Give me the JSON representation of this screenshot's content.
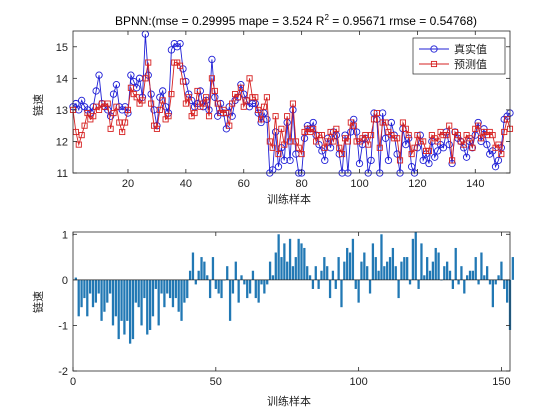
{
  "chart_data": [
    {
      "type": "line",
      "title": "BPNN:(mse = 0.29995 mape = 3.524  R",
      "title_sup": "2",
      "title_tail": " = 0.95671 rmse = 0.54768)",
      "xlabel": "训练样本",
      "ylabel": "链速",
      "xlim": [
        1,
        152
      ],
      "ylim": [
        11,
        15.5
      ],
      "xticks": [
        20,
        40,
        60,
        80,
        100,
        120,
        140
      ],
      "yticks": [
        11,
        12,
        13,
        14,
        15
      ],
      "grid": false,
      "legend_position": "top-right",
      "series": [
        {
          "name": "真实值",
          "color": "#1f1fd6",
          "marker": "circle",
          "values": [
            13.1,
            13.2,
            13.0,
            13.3,
            13.1,
            13.0,
            12.9,
            13.1,
            13.6,
            14.1,
            13.2,
            13.1,
            13.0,
            12.8,
            13.5,
            13.8,
            13.1,
            13.0,
            13.1,
            12.9,
            14.1,
            13.9,
            13.7,
            14.0,
            13.4,
            15.4,
            14.1,
            13.5,
            13.0,
            12.5,
            13.4,
            13.6,
            13.1,
            12.9,
            14.9,
            15.1,
            15.0,
            15.1,
            14.3,
            13.9,
            13.5,
            13.3,
            13.1,
            13.2,
            13.6,
            13.1,
            13.3,
            13.0,
            14.6,
            13.4,
            12.8,
            13.2,
            12.9,
            12.4,
            13.1,
            12.8,
            13.3,
            13.4,
            13.8,
            13.5,
            13.3,
            13.1,
            13.2,
            13.2,
            12.9,
            12.6,
            12.9,
            12.7,
            11.0,
            11.1,
            12.3,
            11.2,
            11.8,
            11.4,
            12.6,
            11.4,
            13.0,
            11.6,
            11.0,
            11.0,
            12.1,
            12.5,
            12.4,
            12.6,
            12.2,
            11.9,
            11.7,
            11.4,
            12.1,
            11.8,
            12.3,
            12.2,
            11.6,
            11.0,
            12.2,
            11.0,
            12.3,
            12.7,
            12.3,
            11.3,
            11.9,
            12.1,
            11.0,
            11.4,
            12.9,
            12.7,
            11.0,
            12.9,
            12.1,
            11.4,
            12.6,
            12.2,
            11.6,
            11.0,
            12.4,
            11.9,
            12.1,
            11.2,
            11.0,
            11.8,
            12.2,
            11.4,
            11.6,
            11.3,
            12.0,
            11.5,
            11.7,
            11.9,
            11.8,
            12.3,
            11.9,
            11.3,
            12.3,
            12.1,
            12.0,
            11.8,
            11.5,
            12.0,
            11.8,
            12.2,
            12.6,
            12.0,
            12.4,
            11.9,
            11.6,
            11.7,
            11.2,
            11.4,
            11.8,
            12.7,
            12.8,
            12.9
          ]
        },
        {
          "name": "预测值",
          "color": "#d62020",
          "marker": "square",
          "values": [
            13.0,
            12.3,
            11.9,
            12.2,
            12.5,
            12.9,
            12.7,
            12.8,
            13.1,
            13.0,
            13.2,
            13.1,
            13.2,
            12.4,
            12.9,
            13.1,
            12.6,
            12.3,
            12.6,
            13.0,
            13.7,
            13.5,
            13.4,
            13.2,
            13.3,
            14.0,
            14.5,
            13.2,
            12.5,
            12.4,
            13.0,
            13.3,
            12.7,
            12.8,
            13.5,
            14.5,
            14.5,
            14.4,
            13.9,
            13.2,
            13.4,
            12.8,
            12.9,
            13.6,
            13.1,
            13.2,
            13.4,
            12.8,
            14.0,
            13.6,
            13.2,
            12.9,
            13.0,
            12.9,
            12.5,
            13.2,
            13.5,
            13.4,
            13.7,
            13.1,
            13.3,
            14.0,
            13.4,
            13.4,
            13.0,
            12.7,
            13.1,
            13.4,
            12.0,
            11.8,
            12.8,
            11.6,
            12.4,
            11.9,
            12.8,
            12.0,
            13.2,
            12.0,
            11.8,
            11.6,
            12.3,
            12.4,
            12.3,
            12.4,
            12.0,
            12.2,
            12.2,
            11.8,
            12.0,
            12.3,
            12.0,
            12.4,
            11.8,
            11.6,
            12.1,
            12.0,
            12.6,
            12.5,
            12.0,
            12.0,
            12.1,
            12.2,
            11.9,
            12.2,
            12.7,
            12.9,
            11.8,
            12.6,
            12.6,
            12.3,
            12.2,
            12.1,
            12.1,
            11.4,
            12.6,
            12.4,
            12.2,
            11.6,
            11.8,
            12.2,
            12.0,
            12.0,
            11.7,
            11.7,
            12.2,
            12.1,
            12.0,
            12.3,
            12.2,
            12.2,
            12.5,
            11.4,
            12.3,
            12.2,
            12.0,
            11.9,
            12.2,
            12.1,
            11.8,
            12.4,
            12.5,
            12.1,
            12.3,
            12.2,
            12.3,
            12.2,
            11.8,
            11.9,
            11.6,
            12.3,
            12.7,
            12.4
          ]
        }
      ]
    },
    {
      "type": "bar",
      "title": "",
      "xlabel": "训练样本",
      "ylabel": "链速",
      "xlim": [
        0,
        153
      ],
      "ylim": [
        -2,
        1.05
      ],
      "xticks": [
        0,
        50,
        100,
        150
      ],
      "yticks": [
        -2,
        -1,
        0,
        1
      ],
      "grid": false,
      "series": [
        {
          "name": "",
          "color": "#2178b4",
          "values": [
            0.05,
            -0.8,
            -0.6,
            -0.4,
            -0.8,
            -0.3,
            -0.6,
            -0.5,
            -0.3,
            -0.9,
            -0.7,
            -0.5,
            -0.3,
            -1.0,
            -0.8,
            -1.3,
            -0.9,
            -1.2,
            -0.9,
            -1.4,
            -1.3,
            -0.5,
            -0.6,
            -1.0,
            -0.4,
            -1.2,
            -1.1,
            -0.8,
            -0.2,
            -1.0,
            -0.3,
            -0.6,
            -0.3,
            -0.4,
            -0.6,
            -0.4,
            -0.7,
            -0.9,
            -0.5,
            -0.4,
            0.2,
            0.6,
            -0.1,
            0.2,
            0.5,
            0.4,
            0.1,
            -0.4,
            0.5,
            -0.2,
            -0.3,
            -0.4,
            0.0,
            0.3,
            -0.9,
            -0.3,
            0.4,
            -0.5,
            0.1,
            -0.1,
            -0.4,
            -0.3,
            0.2,
            -0.4,
            -0.5,
            -0.1,
            -0.3,
            -0.1,
            0.4,
            0.1,
            0.6,
            1.0,
            0.5,
            0.8,
            0.4,
            0.9,
            0.3,
            0.5,
            0.9,
            0.8,
            0.7,
            0.3,
            0.1,
            -0.2,
            0.3,
            -0.2,
            0.2,
            0.5,
            0.3,
            -0.4,
            0.2,
            -0.2,
            0.5,
            -0.6,
            0.4,
            0.7,
            0.6,
            0.9,
            -0.2,
            -0.5,
            0.4,
            0.6,
            0.3,
            -0.3,
            0.8,
            0.5,
            0.2,
            1.0,
            0.3,
            0.4,
            0.5,
            0.7,
            0.3,
            -0.4,
            0.4,
            0.5,
            0.5,
            -0.1,
            0.9,
            1.05,
            -0.2,
            0.8,
            0.1,
            0.5,
            0.2,
            0.4,
            0.7,
            0.6,
            0.0,
            0.3,
            0.4,
            0.2,
            -0.2,
            0.7,
            -0.1,
            0.3,
            -0.3,
            0.1,
            0.2,
            0.2,
            0.5,
            -0.1,
            0.6,
            0.1,
            0.3,
            -0.1,
            -0.6,
            -0.1,
            0.1,
            0.4,
            -0.2,
            -0.5,
            -1.1,
            0.5
          ]
        }
      ]
    }
  ]
}
